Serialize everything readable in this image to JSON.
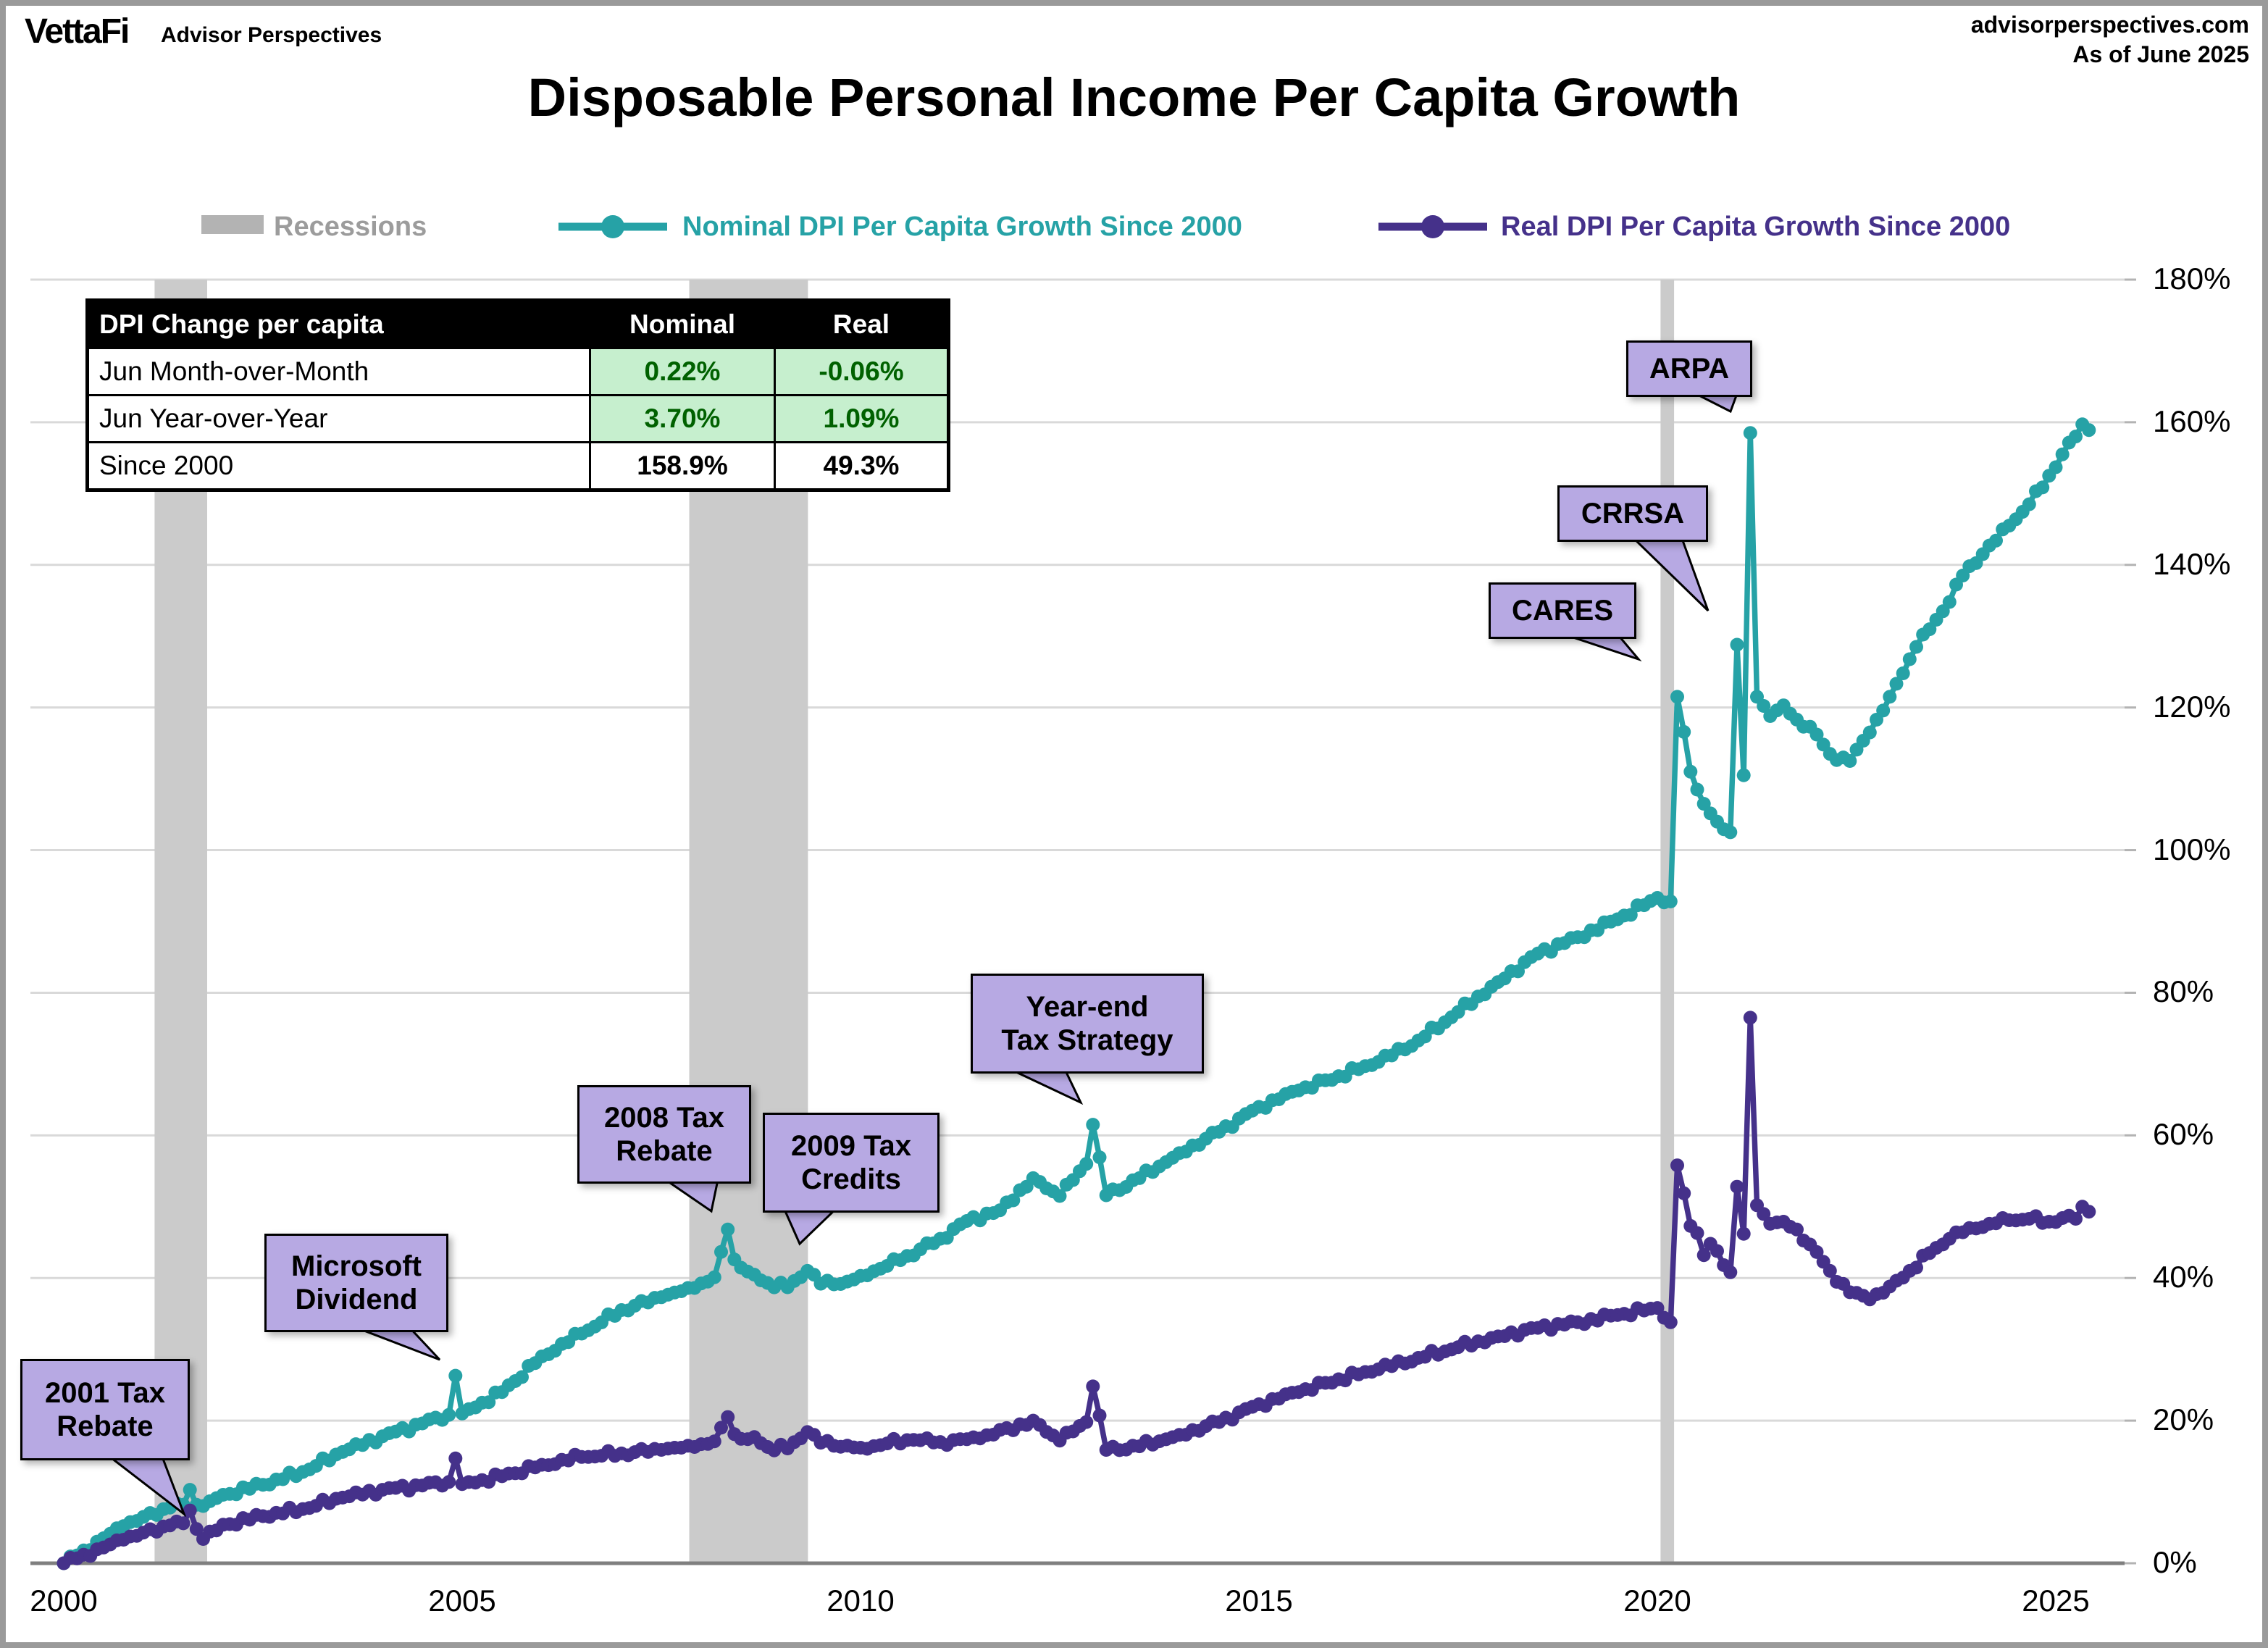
{
  "header": {
    "logo": "VettaFi",
    "logo_sub": "Advisor Perspectives",
    "site": "advisorperspectives.com",
    "as_of": "As of June 2025"
  },
  "title": "Disposable Personal Income Per Capita Growth",
  "legend": {
    "recessions_label": "Recessions",
    "nominal_label": "Nominal DPI Per Capita Growth Since 2000",
    "real_label": "Real DPI Per Capita Growth Since 2000",
    "recessions_swatch_color": "#b3b3b3",
    "recessions_text_color": "#9c9c9c"
  },
  "table": {
    "title_col": "DPI Change per capita",
    "columns": [
      "Nominal",
      "Real"
    ],
    "rows": [
      {
        "label": "Jun Month-over-Month",
        "nominal": "0.22%",
        "real": "-0.06%",
        "highlight": true
      },
      {
        "label": "Jun Year-over-Year",
        "nominal": "3.70%",
        "real": "1.09%",
        "highlight": true
      },
      {
        "label": "Since 2000",
        "nominal": "158.9%",
        "real": "49.3%",
        "highlight": false
      }
    ],
    "highlight_bg": "#c6efce",
    "highlight_text": "#006100"
  },
  "chart_data": {
    "type": "line",
    "title": "Disposable Personal Income Per Capita Growth",
    "xlabel": "",
    "ylabel": "",
    "x_axis": {
      "ticks": [
        2000,
        2005,
        2010,
        2015,
        2020,
        2025
      ],
      "range": [
        2000,
        2025.5
      ]
    },
    "y_axis": {
      "ticks": [
        "0%",
        "20%",
        "40%",
        "60%",
        "80%",
        "100%",
        "120%",
        "140%",
        "160%",
        "180%"
      ],
      "range": [
        0,
        180
      ],
      "grid": true,
      "side": "right"
    },
    "recessions": [
      [
        2001.14,
        2001.8
      ],
      [
        2007.85,
        2009.34
      ],
      [
        2020.04,
        2020.21
      ]
    ],
    "recession_color": "#cbcbcb",
    "grid_color": "#d9d9d9",
    "axis_color": "#7f7f7f",
    "series": [
      {
        "name": "Nominal DPI Per Capita Growth Since 2000",
        "color": "#26a2a6",
        "unit": "percent growth since 2000, monthly",
        "anchors": [
          [
            2000,
            0
          ],
          [
            2000.25,
            1.8
          ],
          [
            2000.5,
            3.5
          ],
          [
            2000.75,
            5.2
          ],
          [
            2001,
            6.5
          ],
          [
            2001.33,
            7.8
          ],
          [
            2001.5,
            8.2
          ],
          [
            2001.58,
            10.3
          ],
          [
            2001.67,
            8.2
          ],
          [
            2001.83,
            8.7
          ],
          [
            2002,
            9.6
          ],
          [
            2002.5,
            11
          ],
          [
            2003,
            12.8
          ],
          [
            2003.5,
            15.6
          ],
          [
            2004,
            17.8
          ],
          [
            2004.5,
            19.6
          ],
          [
            2004.83,
            20.8
          ],
          [
            2004.92,
            26.3
          ],
          [
            2005,
            21
          ],
          [
            2005.5,
            24
          ],
          [
            2006,
            29
          ],
          [
            2006.5,
            32.2
          ],
          [
            2007,
            35.5
          ],
          [
            2007.5,
            37.3
          ],
          [
            2007.92,
            38.6
          ],
          [
            2008.17,
            40.1
          ],
          [
            2008.33,
            46.8
          ],
          [
            2008.42,
            42.6
          ],
          [
            2008.58,
            40.9
          ],
          [
            2008.83,
            39.3
          ],
          [
            2009.08,
            38.7
          ],
          [
            2009.33,
            41
          ],
          [
            2009.5,
            39.2
          ],
          [
            2009.83,
            39.5
          ],
          [
            2010,
            40.3
          ],
          [
            2010.5,
            42.5
          ],
          [
            2011,
            45.5
          ],
          [
            2011.33,
            48
          ],
          [
            2011.75,
            49.5
          ],
          [
            2012.17,
            54
          ],
          [
            2012.5,
            51.5
          ],
          [
            2012.83,
            56
          ],
          [
            2012.92,
            61.5
          ],
          [
            2013.08,
            51.6
          ],
          [
            2013.5,
            54
          ],
          [
            2014,
            57.5
          ],
          [
            2014.5,
            60.5
          ],
          [
            2015,
            64
          ],
          [
            2015.5,
            66.3
          ],
          [
            2016,
            68.3
          ],
          [
            2016.5,
            70.3
          ],
          [
            2017,
            73.3
          ],
          [
            2017.5,
            77.3
          ],
          [
            2018,
            81.5
          ],
          [
            2018.5,
            85.5
          ],
          [
            2019,
            87.8
          ],
          [
            2019.5,
            90.3
          ],
          [
            2020,
            93.3
          ],
          [
            2020.17,
            92.8
          ],
          [
            2020.25,
            121.5
          ],
          [
            2020.42,
            111
          ],
          [
            2020.58,
            106.5
          ],
          [
            2020.75,
            104
          ],
          [
            2020.92,
            102.5
          ],
          [
            2021,
            128.8
          ],
          [
            2021.08,
            110.5
          ],
          [
            2021.17,
            158.5
          ],
          [
            2021.25,
            121.5
          ],
          [
            2021.42,
            118.8
          ],
          [
            2021.58,
            120.3
          ],
          [
            2021.75,
            118.3
          ],
          [
            2021.92,
            117.3
          ],
          [
            2022.17,
            113.5
          ],
          [
            2022.42,
            112.5
          ],
          [
            2022.67,
            116.5
          ],
          [
            2022.92,
            121.5
          ],
          [
            2023.25,
            128.5
          ],
          [
            2023.58,
            133.5
          ],
          [
            2023.83,
            138.5
          ],
          [
            2024.08,
            141.5
          ],
          [
            2024.42,
            145.5
          ],
          [
            2024.67,
            148.5
          ],
          [
            2024.92,
            152.5
          ],
          [
            2025.08,
            155.5
          ],
          [
            2025.25,
            158
          ],
          [
            2025.33,
            159.7
          ],
          [
            2025.42,
            158.9
          ]
        ]
      },
      {
        "name": "Real DPI Per Capita Growth Since 2000",
        "color": "#45318a",
        "unit": "percent growth since 2000, monthly",
        "anchors": [
          [
            2000,
            0
          ],
          [
            2000.25,
            1.2
          ],
          [
            2000.5,
            2.2
          ],
          [
            2000.75,
            3.3
          ],
          [
            2001,
            4.3
          ],
          [
            2001.33,
            5.3
          ],
          [
            2001.5,
            5.6
          ],
          [
            2001.58,
            7.4
          ],
          [
            2001.67,
            4.8
          ],
          [
            2001.75,
            3.4
          ],
          [
            2001.92,
            4.6
          ],
          [
            2002,
            5.4
          ],
          [
            2002.5,
            6.6
          ],
          [
            2003,
            7.6
          ],
          [
            2003.5,
            9.2
          ],
          [
            2004,
            10.3
          ],
          [
            2004.5,
            10.9
          ],
          [
            2004.83,
            11.4
          ],
          [
            2004.92,
            14.7
          ],
          [
            2005,
            11.1
          ],
          [
            2005.5,
            12.2
          ],
          [
            2006,
            13.8
          ],
          [
            2006.5,
            14.9
          ],
          [
            2007,
            15.4
          ],
          [
            2007.5,
            15.9
          ],
          [
            2007.92,
            16.3
          ],
          [
            2008.17,
            17.1
          ],
          [
            2008.33,
            20.5
          ],
          [
            2008.42,
            18.1
          ],
          [
            2008.58,
            17.4
          ],
          [
            2008.67,
            17.7
          ],
          [
            2008.83,
            16.3
          ],
          [
            2009.08,
            16.1
          ],
          [
            2009.33,
            18.4
          ],
          [
            2009.5,
            16.9
          ],
          [
            2009.83,
            16.5
          ],
          [
            2010,
            16.2
          ],
          [
            2010.33,
            16.8
          ],
          [
            2010.67,
            17.3
          ],
          [
            2011,
            17
          ],
          [
            2011.5,
            17.5
          ],
          [
            2012.17,
            20
          ],
          [
            2012.5,
            17.2
          ],
          [
            2012.83,
            19.8
          ],
          [
            2012.92,
            24.8
          ],
          [
            2013.08,
            15.9
          ],
          [
            2013.5,
            16.4
          ],
          [
            2014,
            18
          ],
          [
            2014.5,
            19.8
          ],
          [
            2015,
            22.3
          ],
          [
            2015.5,
            24
          ],
          [
            2016,
            25.8
          ],
          [
            2016.5,
            27.2
          ],
          [
            2017,
            28.8
          ],
          [
            2017.5,
            30.3
          ],
          [
            2018,
            31.8
          ],
          [
            2018.5,
            33
          ],
          [
            2019,
            33.8
          ],
          [
            2019.5,
            34.8
          ],
          [
            2020,
            35.8
          ],
          [
            2020.17,
            33.8
          ],
          [
            2020.25,
            55.8
          ],
          [
            2020.42,
            47.3
          ],
          [
            2020.5,
            46.3
          ],
          [
            2020.58,
            43.2
          ],
          [
            2020.67,
            44.8
          ],
          [
            2020.83,
            41.8
          ],
          [
            2020.92,
            40.8
          ],
          [
            2021,
            52.8
          ],
          [
            2021.08,
            46.2
          ],
          [
            2021.17,
            76.5
          ],
          [
            2021.25,
            50.2
          ],
          [
            2021.42,
            47.6
          ],
          [
            2021.58,
            47.9
          ],
          [
            2021.75,
            46.8
          ],
          [
            2021.92,
            44.7
          ],
          [
            2022.17,
            41
          ],
          [
            2022.42,
            38
          ],
          [
            2022.67,
            37
          ],
          [
            2022.92,
            38.8
          ],
          [
            2023.17,
            41
          ],
          [
            2023.42,
            43.5
          ],
          [
            2023.67,
            45.5
          ],
          [
            2023.92,
            47
          ],
          [
            2024.17,
            47.6
          ],
          [
            2024.42,
            48.1
          ],
          [
            2024.67,
            48.3
          ],
          [
            2024.92,
            47.9
          ],
          [
            2025.08,
            48.4
          ],
          [
            2025.25,
            48.3
          ],
          [
            2025.33,
            50
          ],
          [
            2025.42,
            49.3
          ]
        ]
      }
    ],
    "annotations": [
      {
        "text": "2001 Tax\nRebate"
      },
      {
        "text": "Microsoft\nDividend"
      },
      {
        "text": "2008 Tax\nRebate"
      },
      {
        "text": "2009 Tax\nCredits"
      },
      {
        "text": "Year-end\nTax Strategy"
      },
      {
        "text": "CARES"
      },
      {
        "text": "CRRSA"
      },
      {
        "text": "ARPA"
      }
    ],
    "annotation_fill": "#b7a9e3"
  }
}
